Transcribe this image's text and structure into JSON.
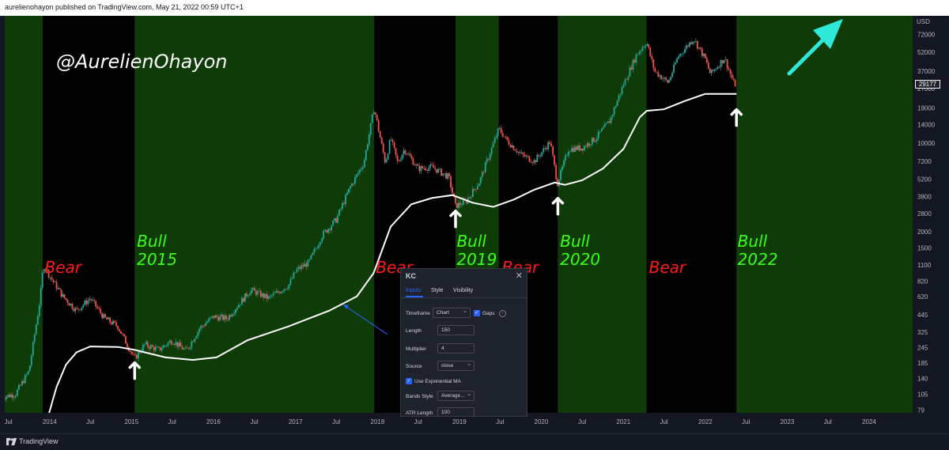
{
  "header": {
    "publisher_line": "aurelienohayon published on TradingView.com, May 21, 2022 00:59 UTC+1"
  },
  "footer": {
    "brand": "TradingView"
  },
  "watermark": "@AurelienOhayon",
  "colors": {
    "bull_zone": "#0e3b07",
    "bear_zone": "#000000",
    "bull_text": "#39ff14",
    "bear_text": "#ff1a1a",
    "candle_up": "#26a69a",
    "candle_down": "#ef5350",
    "ma_line": "#ffffff",
    "arrow_cyan": "#2ee8d8",
    "annotation_blue": "#2962ff"
  },
  "chart_data": {
    "type": "candlestick",
    "yscale": "log",
    "y_unit": "USD",
    "ylim": [
      75,
      90000
    ],
    "xlim": [
      "2013-06-01",
      "2024-12-01"
    ],
    "y_ticks": [
      72000,
      52000,
      37000,
      27000,
      19000,
      14000,
      10000,
      7200,
      5200,
      3800,
      2800,
      2000,
      1500,
      1100,
      820,
      620,
      445,
      325,
      245,
      185,
      140,
      105,
      79
    ],
    "x_ticks": [
      {
        "label": "Jul",
        "date": "2013-07-01"
      },
      {
        "label": "2014",
        "date": "2014-01-01"
      },
      {
        "label": "Jul",
        "date": "2014-07-01"
      },
      {
        "label": "2015",
        "date": "2015-01-01"
      },
      {
        "label": "Jul",
        "date": "2015-07-01"
      },
      {
        "label": "2016",
        "date": "2016-01-01"
      },
      {
        "label": "Jul",
        "date": "2016-07-01"
      },
      {
        "label": "2017",
        "date": "2017-01-01"
      },
      {
        "label": "Jul",
        "date": "2017-07-01"
      },
      {
        "label": "2018",
        "date": "2018-01-01"
      },
      {
        "label": "Jul",
        "date": "2018-07-01"
      },
      {
        "label": "2019",
        "date": "2019-01-01"
      },
      {
        "label": "Jul",
        "date": "2019-07-01"
      },
      {
        "label": "2020",
        "date": "2020-01-01"
      },
      {
        "label": "Jul",
        "date": "2020-07-01"
      },
      {
        "label": "2021",
        "date": "2021-01-01"
      },
      {
        "label": "Jul",
        "date": "2021-07-01"
      },
      {
        "label": "2022",
        "date": "2022-01-01"
      },
      {
        "label": "Jul",
        "date": "2022-07-01"
      },
      {
        "label": "2023",
        "date": "2023-01-01"
      },
      {
        "label": "Jul",
        "date": "2023-07-01"
      },
      {
        "label": "2024",
        "date": "2024-01-01"
      }
    ],
    "last_price": "29177",
    "zones": [
      {
        "type": "bull",
        "start": "2013-06-01",
        "end": "2013-12-01"
      },
      {
        "type": "bear",
        "start": "2013-12-01",
        "end": "2015-01-15"
      },
      {
        "type": "bull",
        "start": "2015-01-15",
        "end": "2017-12-17"
      },
      {
        "type": "bear",
        "start": "2017-12-17",
        "end": "2018-12-15"
      },
      {
        "type": "bull",
        "start": "2018-12-15",
        "end": "2019-06-26"
      },
      {
        "type": "bear",
        "start": "2019-06-26",
        "end": "2020-03-15"
      },
      {
        "type": "bull",
        "start": "2020-03-15",
        "end": "2021-04-14"
      },
      {
        "type": "bear",
        "start": "2021-04-14",
        "end": "2022-05-20"
      },
      {
        "type": "bull",
        "start": "2022-05-20",
        "end": "2024-12-01"
      }
    ],
    "labels": [
      {
        "kind": "bear",
        "text": "Bear",
        "date": "2013-12-10",
        "price": 1300
      },
      {
        "kind": "bull",
        "lines": [
          "Bull",
          "2015"
        ],
        "date": "2015-01-25",
        "price": 2100
      },
      {
        "kind": "bear",
        "text": "Bear",
        "date": "2017-12-25",
        "price": 1300
      },
      {
        "kind": "bull",
        "lines": [
          "Bull",
          "2019"
        ],
        "date": "2018-12-20",
        "price": 2100
      },
      {
        "kind": "bear",
        "text": "Bear",
        "date": "2019-07-10",
        "price": 1300
      },
      {
        "kind": "bull",
        "lines": [
          "Bull",
          "2020"
        ],
        "date": "2020-03-25",
        "price": 2100
      },
      {
        "kind": "bear",
        "text": "Bear",
        "date": "2021-04-25",
        "price": 1300
      },
      {
        "kind": "bull",
        "lines": [
          "Bull",
          "2022"
        ],
        "date": "2022-05-25",
        "price": 2100
      }
    ],
    "price_path": [
      [
        "2013-06-01",
        100
      ],
      [
        "2013-08-01",
        105
      ],
      [
        "2013-10-01",
        160
      ],
      [
        "2013-11-20",
        600
      ],
      [
        "2013-12-04",
        1100
      ],
      [
        "2014-01-10",
        850
      ],
      [
        "2014-03-01",
        620
      ],
      [
        "2014-05-01",
        480
      ],
      [
        "2014-07-01",
        600
      ],
      [
        "2014-09-01",
        420
      ],
      [
        "2014-11-01",
        360
      ],
      [
        "2015-01-14",
        200
      ],
      [
        "2015-03-01",
        260
      ],
      [
        "2015-05-01",
        235
      ],
      [
        "2015-07-01",
        280
      ],
      [
        "2015-09-01",
        230
      ],
      [
        "2015-11-01",
        350
      ],
      [
        "2016-01-01",
        430
      ],
      [
        "2016-03-01",
        415
      ],
      [
        "2016-06-15",
        700
      ],
      [
        "2016-09-01",
        600
      ],
      [
        "2016-12-01",
        760
      ],
      [
        "2017-01-05",
        1000
      ],
      [
        "2017-03-01",
        1150
      ],
      [
        "2017-05-01",
        1900
      ],
      [
        "2017-07-01",
        2500
      ],
      [
        "2017-09-01",
        4500
      ],
      [
        "2017-11-01",
        7000
      ],
      [
        "2017-12-17",
        19000
      ],
      [
        "2018-02-05",
        7000
      ],
      [
        "2018-03-01",
        11000
      ],
      [
        "2018-04-01",
        7000
      ],
      [
        "2018-05-01",
        9000
      ],
      [
        "2018-07-01",
        6300
      ],
      [
        "2018-09-01",
        6500
      ],
      [
        "2018-11-15",
        5400
      ],
      [
        "2018-12-15",
        3200
      ],
      [
        "2019-02-01",
        3500
      ],
      [
        "2019-04-01",
        5000
      ],
      [
        "2019-06-26",
        13000
      ],
      [
        "2019-08-01",
        10500
      ],
      [
        "2019-10-01",
        8200
      ],
      [
        "2019-12-01",
        7200
      ],
      [
        "2020-02-10",
        10300
      ],
      [
        "2020-03-13",
        4800
      ],
      [
        "2020-05-01",
        9000
      ],
      [
        "2020-07-01",
        9200
      ],
      [
        "2020-09-01",
        11000
      ],
      [
        "2020-11-01",
        15000
      ],
      [
        "2021-01-01",
        29000
      ],
      [
        "2021-03-01",
        50000
      ],
      [
        "2021-04-14",
        63000
      ],
      [
        "2021-05-20",
        37000
      ],
      [
        "2021-07-20",
        30000
      ],
      [
        "2021-09-01",
        48000
      ],
      [
        "2021-11-10",
        67000
      ],
      [
        "2022-01-01",
        46000
      ],
      [
        "2022-01-24",
        35000
      ],
      [
        "2022-03-28",
        47000
      ],
      [
        "2022-05-10",
        29000
      ],
      [
        "2022-05-20",
        29177
      ]
    ],
    "ma_path": [
      [
        "2013-12-20",
        65
      ],
      [
        "2014-02-01",
        120
      ],
      [
        "2014-03-15",
        180
      ],
      [
        "2014-05-01",
        225
      ],
      [
        "2014-07-01",
        250
      ],
      [
        "2014-11-01",
        248
      ],
      [
        "2015-01-15",
        235
      ],
      [
        "2015-06-01",
        205
      ],
      [
        "2015-10-01",
        196
      ],
      [
        "2016-01-15",
        205
      ],
      [
        "2016-06-01",
        280
      ],
      [
        "2016-12-01",
        360
      ],
      [
        "2017-06-01",
        480
      ],
      [
        "2017-10-01",
        620
      ],
      [
        "2017-12-15",
        950
      ],
      [
        "2018-03-01",
        2200
      ],
      [
        "2018-06-01",
        3300
      ],
      [
        "2018-09-01",
        3700
      ],
      [
        "2018-12-01",
        3900
      ],
      [
        "2019-03-01",
        3400
      ],
      [
        "2019-06-01",
        3150
      ],
      [
        "2019-09-01",
        3600
      ],
      [
        "2019-12-01",
        4300
      ],
      [
        "2020-03-01",
        4900
      ],
      [
        "2020-04-15",
        4700
      ],
      [
        "2020-07-01",
        5100
      ],
      [
        "2020-10-01",
        6300
      ],
      [
        "2021-01-01",
        9000
      ],
      [
        "2021-03-15",
        16000
      ],
      [
        "2021-04-15",
        18000
      ],
      [
        "2021-07-01",
        18500
      ],
      [
        "2021-10-01",
        21500
      ],
      [
        "2022-01-01",
        24500
      ],
      [
        "2022-05-20",
        24500
      ]
    ],
    "markers": [
      {
        "type": "up-arrow",
        "date": "2015-01-15"
      },
      {
        "type": "up-arrow",
        "date": "2018-12-15"
      },
      {
        "type": "up-arrow",
        "date": "2020-03-15"
      },
      {
        "type": "up-arrow",
        "date": "2022-05-20"
      }
    ]
  },
  "indicator_dialog": {
    "title": "KC",
    "tabs": [
      "Inputs",
      "Style",
      "Visibility"
    ],
    "active_tab": "Inputs",
    "fields": {
      "timeframe_label": "Timeframe",
      "timeframe_value": "Chart",
      "gaps_label": "Gaps",
      "length_label": "Length",
      "length_value": "150",
      "multiplier_label": "Multiplier",
      "multiplier_value": "4",
      "source_label": "Source",
      "source_value": "close",
      "use_ema_label": "Use Exponential MA",
      "bands_style_label": "Bands Style",
      "bands_style_value": "Average...",
      "atr_length_label": "ATR Length",
      "atr_length_value": "100"
    }
  }
}
